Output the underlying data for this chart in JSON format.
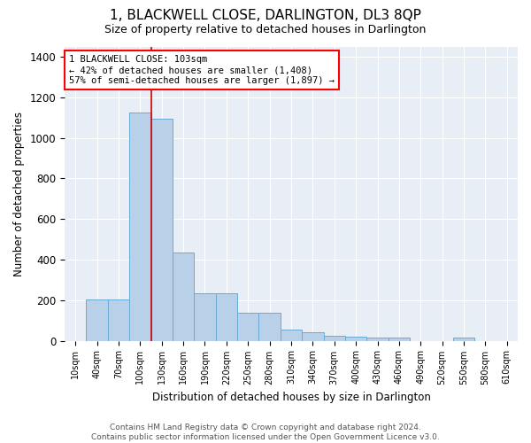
{
  "title": "1, BLACKWELL CLOSE, DARLINGTON, DL3 8QP",
  "subtitle": "Size of property relative to detached houses in Darlington",
  "xlabel": "Distribution of detached houses by size in Darlington",
  "ylabel": "Number of detached properties",
  "bar_color": "#b8d0e8",
  "bar_edge_color": "#6aaad4",
  "background_color": "#e8eef5",
  "categories": [
    "10sqm",
    "40sqm",
    "70sqm",
    "100sqm",
    "130sqm",
    "160sqm",
    "190sqm",
    "220sqm",
    "250sqm",
    "280sqm",
    "310sqm",
    "340sqm",
    "370sqm",
    "400sqm",
    "430sqm",
    "460sqm",
    "490sqm",
    "520sqm",
    "550sqm",
    "580sqm",
    "610sqm"
  ],
  "values": [
    0,
    205,
    205,
    1125,
    1095,
    435,
    235,
    235,
    140,
    140,
    55,
    40,
    25,
    20,
    15,
    15,
    0,
    0,
    15,
    0,
    0
  ],
  "ylim": [
    0,
    1450
  ],
  "yticks": [
    0,
    200,
    400,
    600,
    800,
    1000,
    1200,
    1400
  ],
  "property_sqm": 103,
  "pct_smaller": 42,
  "n_smaller": 1408,
  "pct_larger_semi": 57,
  "n_larger_semi": 1897,
  "vline_x": 3.5,
  "vline_color": "#cc0000",
  "annotation_box_text_line1": "1 BLACKWELL CLOSE: 103sqm",
  "annotation_box_text_line2": "← 42% of detached houses are smaller (1,408)",
  "annotation_box_text_line3": "57% of semi-detached houses are larger (1,897) →",
  "footer_line1": "Contains HM Land Registry data © Crown copyright and database right 2024.",
  "footer_line2": "Contains public sector information licensed under the Open Government Licence v3.0."
}
